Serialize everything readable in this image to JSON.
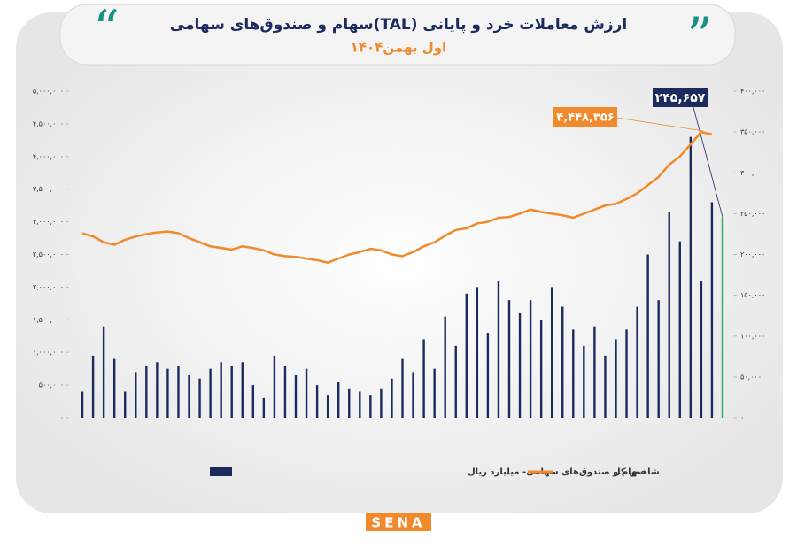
{
  "chart_data": {
    "type": "bar-line",
    "title": "ارزش معاملات خرد و پایانی (TAL)سهام و صندوق‌های سهامی",
    "subtitle": "اول بهمن۱۴۰۴",
    "logo": "SENA",
    "categories": [
      null,
      null,
      null,
      null,
      null,
      null,
      null,
      null,
      null,
      null,
      null,
      null,
      null,
      null,
      null,
      null,
      null,
      null,
      null,
      null,
      null,
      null,
      null,
      null,
      null,
      null,
      null,
      null,
      null,
      null,
      null,
      null,
      null,
      null,
      null,
      null,
      null,
      null,
      null,
      null,
      null,
      null,
      null,
      null,
      null,
      null,
      null,
      null,
      null,
      null,
      null,
      null,
      null,
      null,
      null,
      null,
      null,
      null,
      null,
      null
    ],
    "series": [
      {
        "name": "سهام و صندوق‌های سهامی- میلیارد ریال",
        "color": "#1c2a5e",
        "axis": "y",
        "values": [
          400000,
          950000,
          1400000,
          900000,
          400000,
          700000,
          800000,
          850000,
          750000,
          800000,
          650000,
          600000,
          750000,
          850000,
          800000,
          850000,
          500000,
          300000,
          950000,
          800000,
          650000,
          750000,
          500000,
          350000,
          550000,
          450000,
          400000,
          350000,
          450000,
          600000,
          900000,
          700000,
          1200000,
          750000,
          1550000,
          1100000,
          1900000,
          2000000,
          1300000,
          2100000,
          1800000,
          1600000,
          1800000,
          1500000,
          2000000,
          1700000,
          1350000,
          1100000,
          1400000,
          950000,
          1200000,
          1350000,
          1700000,
          2500000,
          1800000,
          3150000,
          2700000,
          4300000,
          2100000,
          3300000
        ]
      },
      {
        "name": "شاخص کل",
        "color": "#f08a2c",
        "axis": "y2",
        "values": [
          226000,
          222000,
          215000,
          212000,
          218000,
          222000,
          225000,
          227000,
          228000,
          226000,
          220000,
          215000,
          210000,
          208000,
          206000,
          210000,
          208000,
          205000,
          200000,
          198000,
          197000,
          195000,
          193000,
          190000,
          195000,
          200000,
          203000,
          207000,
          205000,
          200000,
          198000,
          203000,
          210000,
          215000,
          223000,
          230000,
          232000,
          238000,
          240000,
          245000,
          246000,
          250000,
          255000,
          252000,
          250000,
          248000,
          245000,
          250000,
          255000,
          260000,
          262000,
          268000,
          275000,
          285000,
          295000,
          310000,
          320000,
          335000,
          350000,
          347000
        ]
      }
    ],
    "highlight": {
      "value": 245657,
      "label": "۲۴۵,۶۵۷",
      "color": "#27ae60",
      "axis": "y2"
    },
    "annotation": "۴,۴۴۸,۳۵۶",
    "ylim": [
      0,
      5000000
    ],
    "yticks": [
      {
        "value": 0,
        "label": "۰"
      },
      {
        "value": 500000,
        "label": "۵۰۰,۰۰۰"
      },
      {
        "value": 1000000,
        "label": "۱,۰۰۰,۰۰۰"
      },
      {
        "value": 1500000,
        "label": "۱,۵۰۰,۰۰۰"
      },
      {
        "value": 2000000,
        "label": "۲,۰۰۰,۰۰۰"
      },
      {
        "value": 2500000,
        "label": "۲,۵۰۰,۰۰۰"
      },
      {
        "value": 3000000,
        "label": "۳,۰۰۰,۰۰۰"
      },
      {
        "value": 3500000,
        "label": "۳,۵۰۰,۰۰۰"
      },
      {
        "value": 4000000,
        "label": "۴,۰۰۰,۰۰۰"
      },
      {
        "value": 4500000,
        "label": "۴,۵۰۰,۰۰۰"
      },
      {
        "value": 5000000,
        "label": "۵,۰۰۰,۰۰۰"
      }
    ],
    "y2lim": [
      0,
      400000
    ],
    "y2ticks": [
      {
        "value": 0,
        "label": "۰"
      },
      {
        "value": 50000,
        "label": "۵۰,۰۰۰"
      },
      {
        "value": 100000,
        "label": "۱۰۰,۰۰۰"
      },
      {
        "value": 150000,
        "label": "۱۵۰,۰۰۰"
      },
      {
        "value": 200000,
        "label": "۲۰۰,۰۰۰"
      },
      {
        "value": 250000,
        "label": "۲۵۰,۰۰۰"
      },
      {
        "value": 300000,
        "label": "۳۰۰,۰۰۰"
      },
      {
        "value": 350000,
        "label": "۳۵۰,۰۰۰"
      },
      {
        "value": 400000,
        "label": "۴۰۰,۰۰۰"
      }
    ]
  }
}
